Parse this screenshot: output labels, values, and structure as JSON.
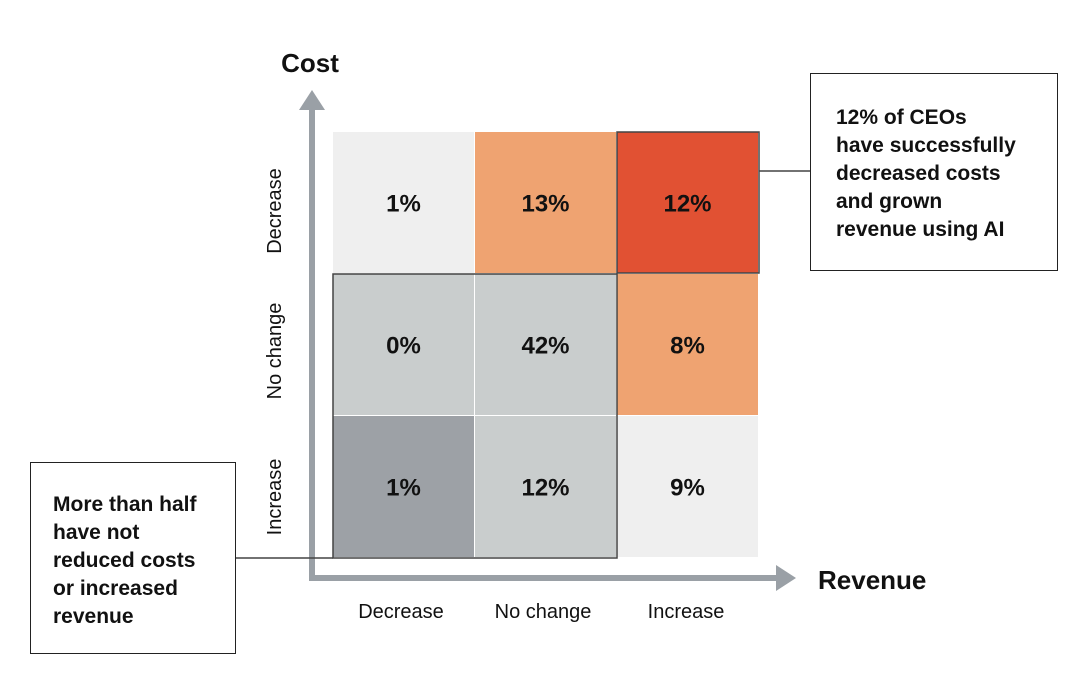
{
  "chart_data": {
    "type": "heatmap",
    "y_axis": {
      "title": "Cost",
      "categories": [
        "Decrease",
        "No change",
        "Increase"
      ]
    },
    "x_axis": {
      "title": "Revenue",
      "categories": [
        "Decrease",
        "No change",
        "Increase"
      ]
    },
    "cells": [
      {
        "cost": "Decrease",
        "revenue": "Decrease",
        "value": 1,
        "label": "1%",
        "color": "#efefef"
      },
      {
        "cost": "Decrease",
        "revenue": "No change",
        "value": 13,
        "label": "13%",
        "color": "#efa371"
      },
      {
        "cost": "Decrease",
        "revenue": "Increase",
        "value": 12,
        "label": "12%",
        "color": "#e15133"
      },
      {
        "cost": "No change",
        "revenue": "Decrease",
        "value": 0,
        "label": "0%",
        "color": "#c9cdcd"
      },
      {
        "cost": "No change",
        "revenue": "No change",
        "value": 42,
        "label": "42%",
        "color": "#c9cdcd"
      },
      {
        "cost": "No change",
        "revenue": "Increase",
        "value": 8,
        "label": "8%",
        "color": "#efa371"
      },
      {
        "cost": "Increase",
        "revenue": "Decrease",
        "value": 1,
        "label": "1%",
        "color": "#9da1a6"
      },
      {
        "cost": "Increase",
        "revenue": "No change",
        "value": 12,
        "label": "12%",
        "color": "#c9cdcd"
      },
      {
        "cost": "Increase",
        "revenue": "Increase",
        "value": 9,
        "label": "9%",
        "color": "#efefef"
      }
    ],
    "axis_color": "#9aa0a6"
  },
  "callouts": {
    "right": "12% of CEOs\nhave successfully\ndecreased costs\nand grown\nrevenue using AI",
    "left": "More than half\nhave not\nreduced costs\nor increased\nrevenue"
  }
}
